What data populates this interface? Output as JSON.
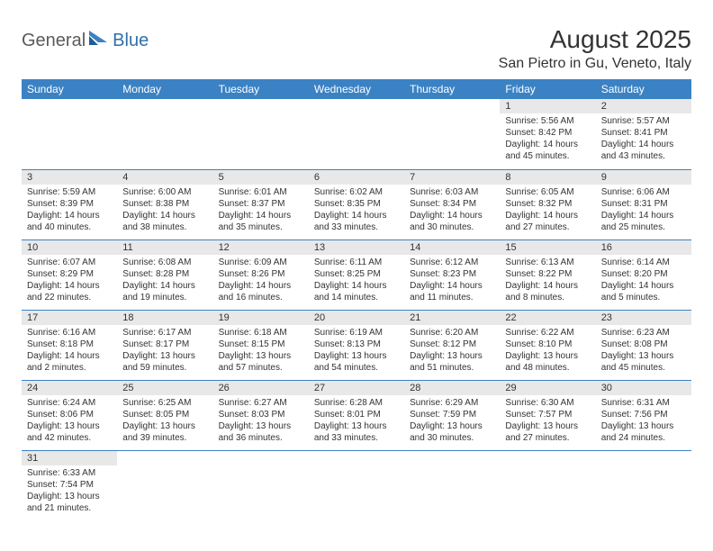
{
  "logo": {
    "part1": "General",
    "part2": "Blue"
  },
  "title": "August 2025",
  "location": "San Pietro in Gu, Veneto, Italy",
  "colors": {
    "header_bg": "#3b82c4",
    "header_text": "#ffffff",
    "daynum_bg": "#e8e8e8",
    "border": "#3b82c4",
    "logo_gray": "#5a5a5a",
    "logo_blue": "#2f6fa8",
    "text": "#333333"
  },
  "dayNames": [
    "Sunday",
    "Monday",
    "Tuesday",
    "Wednesday",
    "Thursday",
    "Friday",
    "Saturday"
  ],
  "weeks": [
    [
      null,
      null,
      null,
      null,
      null,
      {
        "n": "1",
        "sr": "Sunrise: 5:56 AM",
        "ss": "Sunset: 8:42 PM",
        "dl": "Daylight: 14 hours and 45 minutes."
      },
      {
        "n": "2",
        "sr": "Sunrise: 5:57 AM",
        "ss": "Sunset: 8:41 PM",
        "dl": "Daylight: 14 hours and 43 minutes."
      }
    ],
    [
      {
        "n": "3",
        "sr": "Sunrise: 5:59 AM",
        "ss": "Sunset: 8:39 PM",
        "dl": "Daylight: 14 hours and 40 minutes."
      },
      {
        "n": "4",
        "sr": "Sunrise: 6:00 AM",
        "ss": "Sunset: 8:38 PM",
        "dl": "Daylight: 14 hours and 38 minutes."
      },
      {
        "n": "5",
        "sr": "Sunrise: 6:01 AM",
        "ss": "Sunset: 8:37 PM",
        "dl": "Daylight: 14 hours and 35 minutes."
      },
      {
        "n": "6",
        "sr": "Sunrise: 6:02 AM",
        "ss": "Sunset: 8:35 PM",
        "dl": "Daylight: 14 hours and 33 minutes."
      },
      {
        "n": "7",
        "sr": "Sunrise: 6:03 AM",
        "ss": "Sunset: 8:34 PM",
        "dl": "Daylight: 14 hours and 30 minutes."
      },
      {
        "n": "8",
        "sr": "Sunrise: 6:05 AM",
        "ss": "Sunset: 8:32 PM",
        "dl": "Daylight: 14 hours and 27 minutes."
      },
      {
        "n": "9",
        "sr": "Sunrise: 6:06 AM",
        "ss": "Sunset: 8:31 PM",
        "dl": "Daylight: 14 hours and 25 minutes."
      }
    ],
    [
      {
        "n": "10",
        "sr": "Sunrise: 6:07 AM",
        "ss": "Sunset: 8:29 PM",
        "dl": "Daylight: 14 hours and 22 minutes."
      },
      {
        "n": "11",
        "sr": "Sunrise: 6:08 AM",
        "ss": "Sunset: 8:28 PM",
        "dl": "Daylight: 14 hours and 19 minutes."
      },
      {
        "n": "12",
        "sr": "Sunrise: 6:09 AM",
        "ss": "Sunset: 8:26 PM",
        "dl": "Daylight: 14 hours and 16 minutes."
      },
      {
        "n": "13",
        "sr": "Sunrise: 6:11 AM",
        "ss": "Sunset: 8:25 PM",
        "dl": "Daylight: 14 hours and 14 minutes."
      },
      {
        "n": "14",
        "sr": "Sunrise: 6:12 AM",
        "ss": "Sunset: 8:23 PM",
        "dl": "Daylight: 14 hours and 11 minutes."
      },
      {
        "n": "15",
        "sr": "Sunrise: 6:13 AM",
        "ss": "Sunset: 8:22 PM",
        "dl": "Daylight: 14 hours and 8 minutes."
      },
      {
        "n": "16",
        "sr": "Sunrise: 6:14 AM",
        "ss": "Sunset: 8:20 PM",
        "dl": "Daylight: 14 hours and 5 minutes."
      }
    ],
    [
      {
        "n": "17",
        "sr": "Sunrise: 6:16 AM",
        "ss": "Sunset: 8:18 PM",
        "dl": "Daylight: 14 hours and 2 minutes."
      },
      {
        "n": "18",
        "sr": "Sunrise: 6:17 AM",
        "ss": "Sunset: 8:17 PM",
        "dl": "Daylight: 13 hours and 59 minutes."
      },
      {
        "n": "19",
        "sr": "Sunrise: 6:18 AM",
        "ss": "Sunset: 8:15 PM",
        "dl": "Daylight: 13 hours and 57 minutes."
      },
      {
        "n": "20",
        "sr": "Sunrise: 6:19 AM",
        "ss": "Sunset: 8:13 PM",
        "dl": "Daylight: 13 hours and 54 minutes."
      },
      {
        "n": "21",
        "sr": "Sunrise: 6:20 AM",
        "ss": "Sunset: 8:12 PM",
        "dl": "Daylight: 13 hours and 51 minutes."
      },
      {
        "n": "22",
        "sr": "Sunrise: 6:22 AM",
        "ss": "Sunset: 8:10 PM",
        "dl": "Daylight: 13 hours and 48 minutes."
      },
      {
        "n": "23",
        "sr": "Sunrise: 6:23 AM",
        "ss": "Sunset: 8:08 PM",
        "dl": "Daylight: 13 hours and 45 minutes."
      }
    ],
    [
      {
        "n": "24",
        "sr": "Sunrise: 6:24 AM",
        "ss": "Sunset: 8:06 PM",
        "dl": "Daylight: 13 hours and 42 minutes."
      },
      {
        "n": "25",
        "sr": "Sunrise: 6:25 AM",
        "ss": "Sunset: 8:05 PM",
        "dl": "Daylight: 13 hours and 39 minutes."
      },
      {
        "n": "26",
        "sr": "Sunrise: 6:27 AM",
        "ss": "Sunset: 8:03 PM",
        "dl": "Daylight: 13 hours and 36 minutes."
      },
      {
        "n": "27",
        "sr": "Sunrise: 6:28 AM",
        "ss": "Sunset: 8:01 PM",
        "dl": "Daylight: 13 hours and 33 minutes."
      },
      {
        "n": "28",
        "sr": "Sunrise: 6:29 AM",
        "ss": "Sunset: 7:59 PM",
        "dl": "Daylight: 13 hours and 30 minutes."
      },
      {
        "n": "29",
        "sr": "Sunrise: 6:30 AM",
        "ss": "Sunset: 7:57 PM",
        "dl": "Daylight: 13 hours and 27 minutes."
      },
      {
        "n": "30",
        "sr": "Sunrise: 6:31 AM",
        "ss": "Sunset: 7:56 PM",
        "dl": "Daylight: 13 hours and 24 minutes."
      }
    ],
    [
      {
        "n": "31",
        "sr": "Sunrise: 6:33 AM",
        "ss": "Sunset: 7:54 PM",
        "dl": "Daylight: 13 hours and 21 minutes."
      },
      null,
      null,
      null,
      null,
      null,
      null
    ]
  ]
}
